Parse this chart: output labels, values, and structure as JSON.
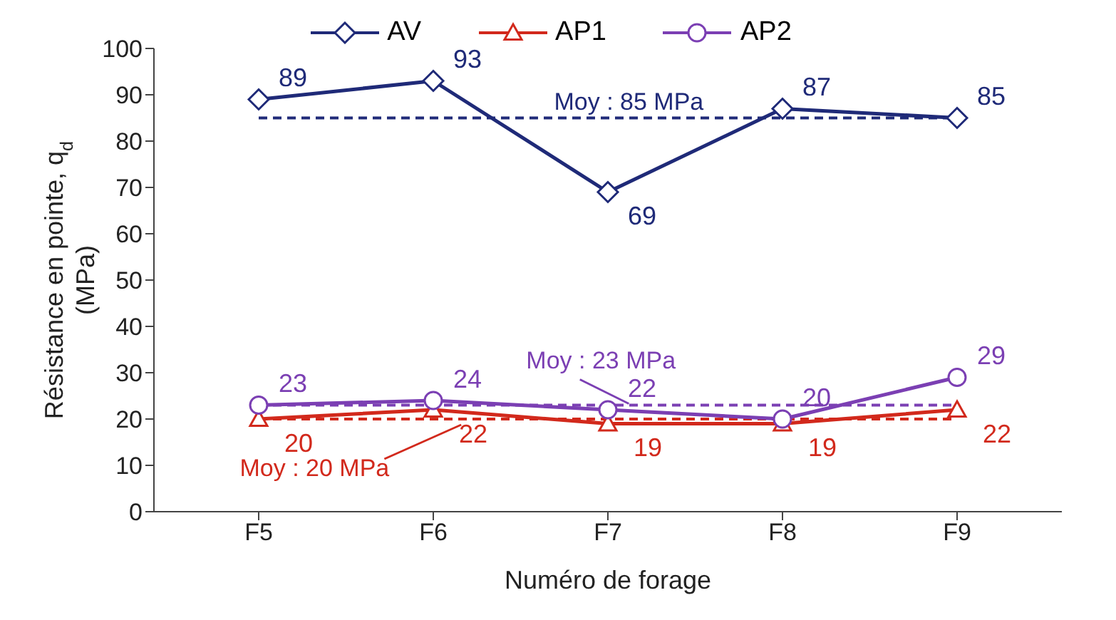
{
  "chart_data": {
    "type": "line",
    "xlabel": "Numéro de forage",
    "ylabel": "Résistance en pointe, q$_{d}$ (MPa)",
    "categories": [
      "F5",
      "F6",
      "F7",
      "F8",
      "F9"
    ],
    "series": [
      {
        "name": "AV",
        "color": "#1f2a78",
        "marker": "diamond",
        "values": [
          89,
          93,
          69,
          87,
          85
        ]
      },
      {
        "name": "AP1",
        "color": "#d2291c",
        "marker": "triangle",
        "values": [
          20,
          22,
          19,
          19,
          22
        ]
      },
      {
        "name": "AP2",
        "color": "#7b3fb3",
        "marker": "circle",
        "values": [
          23,
          24,
          22,
          20,
          29
        ]
      }
    ],
    "ylim": [
      0,
      100
    ],
    "yticks": [
      0,
      10,
      20,
      30,
      40,
      50,
      60,
      70,
      80,
      90,
      100
    ],
    "legend": "top",
    "data_labels": true,
    "line_style": "solid",
    "ref_lines": [
      {
        "axis": "y",
        "value": 85,
        "label": "Moy : 85 MPa",
        "color": "#1f2a78",
        "line_style": "dashed"
      },
      {
        "axis": "y",
        "value": 20,
        "label": "Moy : 20 MPa",
        "color": "#d2291c",
        "line_style": "dashed"
      },
      {
        "axis": "y",
        "value": 23,
        "label": "Moy : 23 MPa",
        "color": "#7b3fb3",
        "line_style": "dashed"
      }
    ]
  }
}
